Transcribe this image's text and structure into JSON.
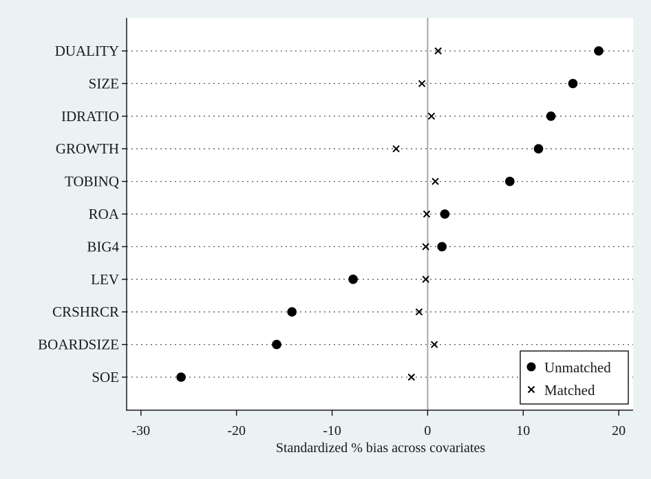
{
  "chart_data": {
    "type": "scatter",
    "orientation": "horizontal-dot-plot",
    "title": "",
    "xlabel": "Standardized % bias across covariates",
    "ylabel": "",
    "xlim": [
      -31.5,
      21.5
    ],
    "xticks": [
      -30,
      -20,
      -10,
      0,
      10,
      20
    ],
    "xtick_labels": [
      "-30",
      "-20",
      "-10",
      "0",
      "10",
      "20"
    ],
    "grid": "dotted horizontal guide lines per covariate",
    "reference_line_x": 0,
    "legend_position": "bottom-right",
    "categories": [
      "DUALITY",
      "SIZE",
      "IDRATIO",
      "GROWTH",
      "TOBINQ",
      "ROA",
      "BIG4",
      "LEV",
      "CRSHRCR",
      "BOARDSIZE",
      "SOE"
    ],
    "series": [
      {
        "name": "Unmatched",
        "marker": "filled-circle",
        "values": [
          17.9,
          15.2,
          12.9,
          11.6,
          8.6,
          1.8,
          1.5,
          -7.8,
          -14.2,
          -15.8,
          -25.8
        ]
      },
      {
        "name": "Matched",
        "marker": "x",
        "values": [
          1.1,
          -0.6,
          0.4,
          -3.3,
          0.8,
          -0.1,
          -0.2,
          -0.2,
          -0.9,
          0.7,
          -1.7
        ]
      }
    ],
    "colors": {
      "background": "#eaf2f3",
      "plot_area": "#ffffff",
      "markers": "#000000",
      "reference_line": "#a6a6a6"
    }
  }
}
